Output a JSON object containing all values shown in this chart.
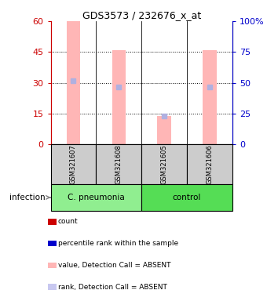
{
  "title": "GDS3573 / 232676_x_at",
  "samples": [
    "GSM321607",
    "GSM321608",
    "GSM321605",
    "GSM321606"
  ],
  "bar_values": [
    60,
    46,
    14,
    46
  ],
  "percentile_ranks": [
    31,
    28,
    14,
    28
  ],
  "bar_color_absent": "#ffb6b6",
  "marker_color_absent": "#b0b0e0",
  "ylim_left": [
    0,
    60
  ],
  "ylim_right": [
    0,
    100
  ],
  "yticks_left": [
    0,
    15,
    30,
    45,
    60
  ],
  "yticks_right": [
    0,
    25,
    50,
    75,
    100
  ],
  "left_axis_color": "#cc0000",
  "right_axis_color": "#0000cc",
  "legend_colors": [
    "#cc0000",
    "#0000cc",
    "#ffb6b6",
    "#c8c8f0"
  ],
  "legend_labels": [
    "count",
    "percentile rank within the sample",
    "value, Detection Call = ABSENT",
    "rank, Detection Call = ABSENT"
  ],
  "infection_label": "infection",
  "group_info": [
    {
      "label": "C. pneumonia",
      "xmin": -0.5,
      "xmax": 1.5,
      "color": "#90ee90"
    },
    {
      "label": "control",
      "xmin": 1.5,
      "xmax": 3.5,
      "color": "#55dd55"
    }
  ],
  "sample_box_color": "#cccccc",
  "bar_width": 0.3
}
